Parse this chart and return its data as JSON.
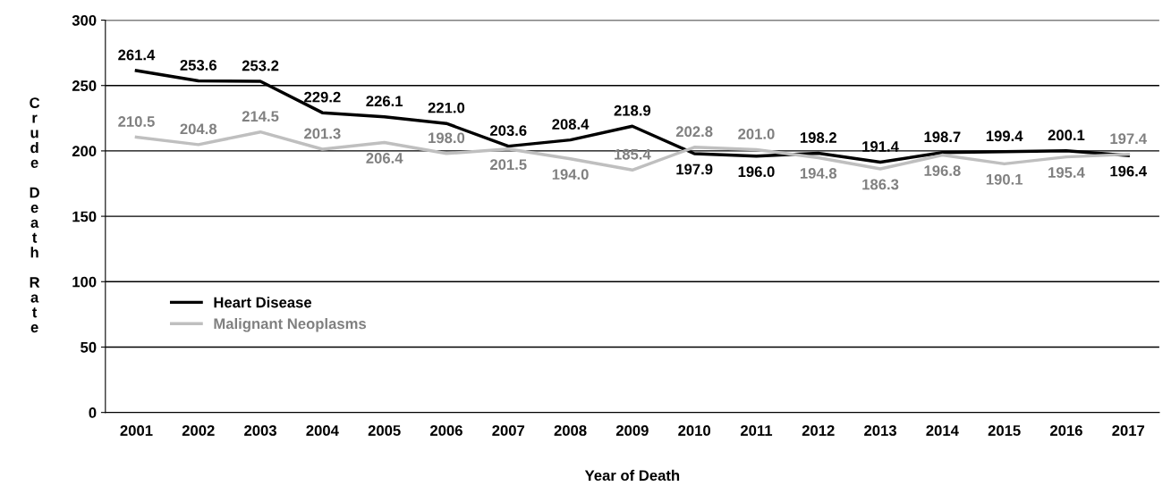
{
  "chart_data": {
    "type": "line",
    "xlabel": "Year of Death",
    "ylabel": "Crude Death Rate",
    "categories": [
      "2001",
      "2002",
      "2003",
      "2004",
      "2005",
      "2006",
      "2007",
      "2008",
      "2009",
      "2010",
      "2011",
      "2012",
      "2013",
      "2014",
      "2015",
      "2016",
      "2017"
    ],
    "series": [
      {
        "name": "Heart Disease",
        "color": "#000000",
        "values": [
          261.4,
          253.6,
          253.2,
          229.2,
          226.1,
          221.0,
          203.6,
          208.4,
          218.9,
          197.9,
          196.0,
          198.2,
          191.4,
          198.7,
          199.4,
          200.1,
          196.4
        ],
        "value_labels": [
          "261.4",
          "253.6",
          "253.2",
          "229.2",
          "226.1",
          "221.0",
          "203.6",
          "208.4",
          "218.9",
          "197.9",
          "196.0",
          "198.2",
          "191.4",
          "198.7",
          "199.4",
          "200.1",
          "196.4"
        ]
      },
      {
        "name": "Malignant Neoplasms",
        "color": "#bfbfbf",
        "values": [
          210.5,
          204.8,
          214.5,
          201.3,
          206.4,
          198.0,
          201.5,
          194.0,
          185.4,
          202.8,
          201.0,
          194.8,
          186.3,
          196.8,
          190.1,
          195.4,
          197.4
        ],
        "value_labels": [
          "210.5",
          "204.8",
          "214.5",
          "201.3",
          "206.4",
          "198.0",
          "201.5",
          "194.0",
          "185.4",
          "202.8",
          "201.0",
          "194.8",
          "186.3",
          "196.8",
          "190.1",
          "195.4",
          "197.4"
        ]
      }
    ],
    "ylim": [
      0,
      300
    ],
    "yticks": [
      0,
      50,
      100,
      150,
      200,
      250,
      300
    ],
    "grid": "y",
    "legend": "center left",
    "marker": "none",
    "line_style": "solid"
  }
}
